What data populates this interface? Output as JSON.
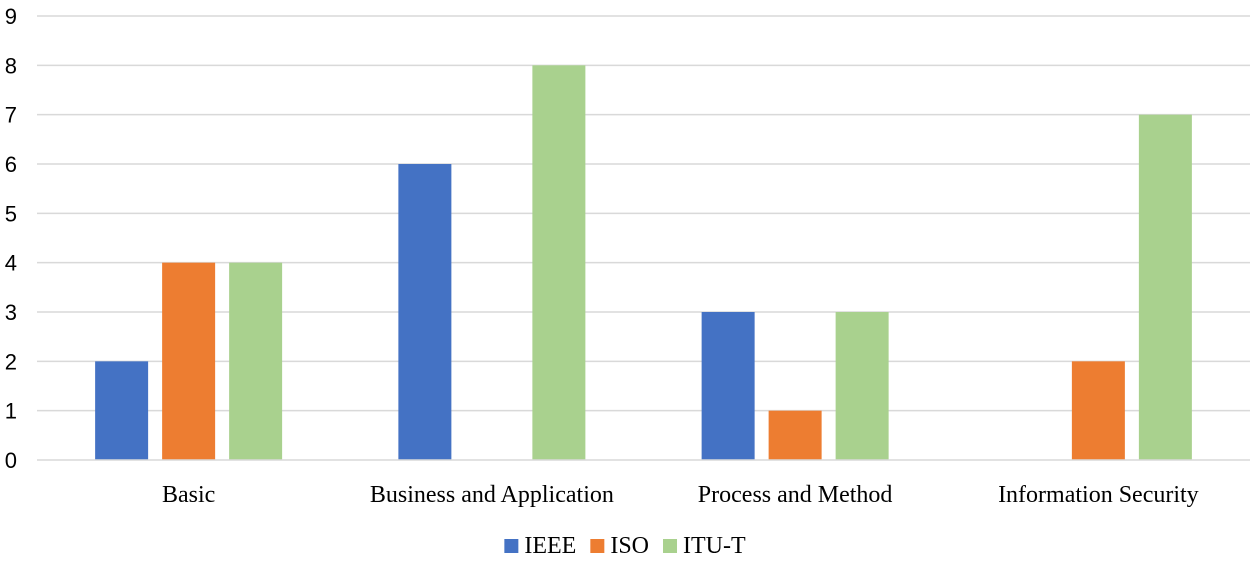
{
  "chart_data": {
    "type": "bar",
    "title": "",
    "xlabel": "",
    "ylabel": "",
    "categories": [
      "Basic",
      "Business and Application",
      "Process and Method",
      "Information Security"
    ],
    "series": [
      {
        "name": "IEEE",
        "color": "#4472C4",
        "values": [
          2,
          6,
          3,
          0
        ]
      },
      {
        "name": "ISO",
        "color": "#ED7D31",
        "values": [
          4,
          0,
          1,
          2
        ]
      },
      {
        "name": "ITU-T",
        "color": "#A9D18E",
        "values": [
          4,
          8,
          3,
          7
        ]
      }
    ],
    "ylim": [
      0,
      9
    ],
    "yticks": [
      0,
      1,
      2,
      3,
      4,
      5,
      6,
      7,
      8,
      9
    ],
    "grid": true,
    "legend_position": "bottom"
  }
}
